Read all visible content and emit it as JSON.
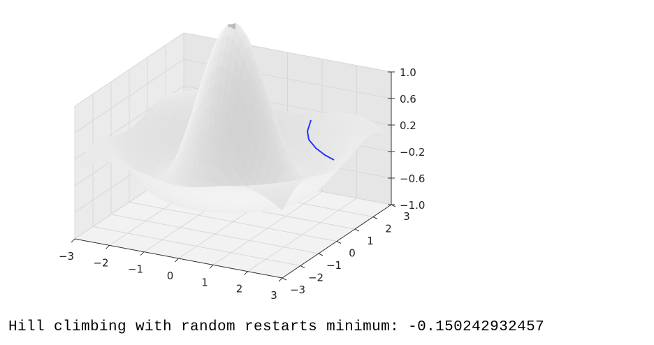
{
  "chart_data": {
    "type": "surface3d",
    "surface": "sin-like radial ripple surface (gray shading)",
    "x_ticks": [
      -3,
      -2,
      -1,
      0,
      1,
      2,
      3
    ],
    "y_ticks": [
      -3,
      -2,
      -1,
      0,
      1,
      2,
      3
    ],
    "z_ticks": [
      1.0,
      0.6,
      0.2,
      -0.2,
      -0.6,
      -1.0
    ],
    "x_tick_labels": [
      "−3",
      "−2",
      "−1",
      "0",
      "1",
      "2",
      "3"
    ],
    "y_tick_labels": [
      "−3",
      "−2",
      "−1",
      "0",
      "1",
      "2",
      "3"
    ],
    "z_tick_labels": [
      "1.0",
      "0.6",
      "0.2",
      "−0.2",
      "−0.6",
      "−1.0"
    ],
    "xlim": [
      -3,
      3
    ],
    "ylim": [
      -3,
      3
    ],
    "zlim": [
      -1.0,
      1.0
    ],
    "grid": true,
    "series": [
      {
        "color": "#2233ff"
      }
    ]
  },
  "output_text": "Hill climbing with random restarts minimum: -0.150242932457"
}
